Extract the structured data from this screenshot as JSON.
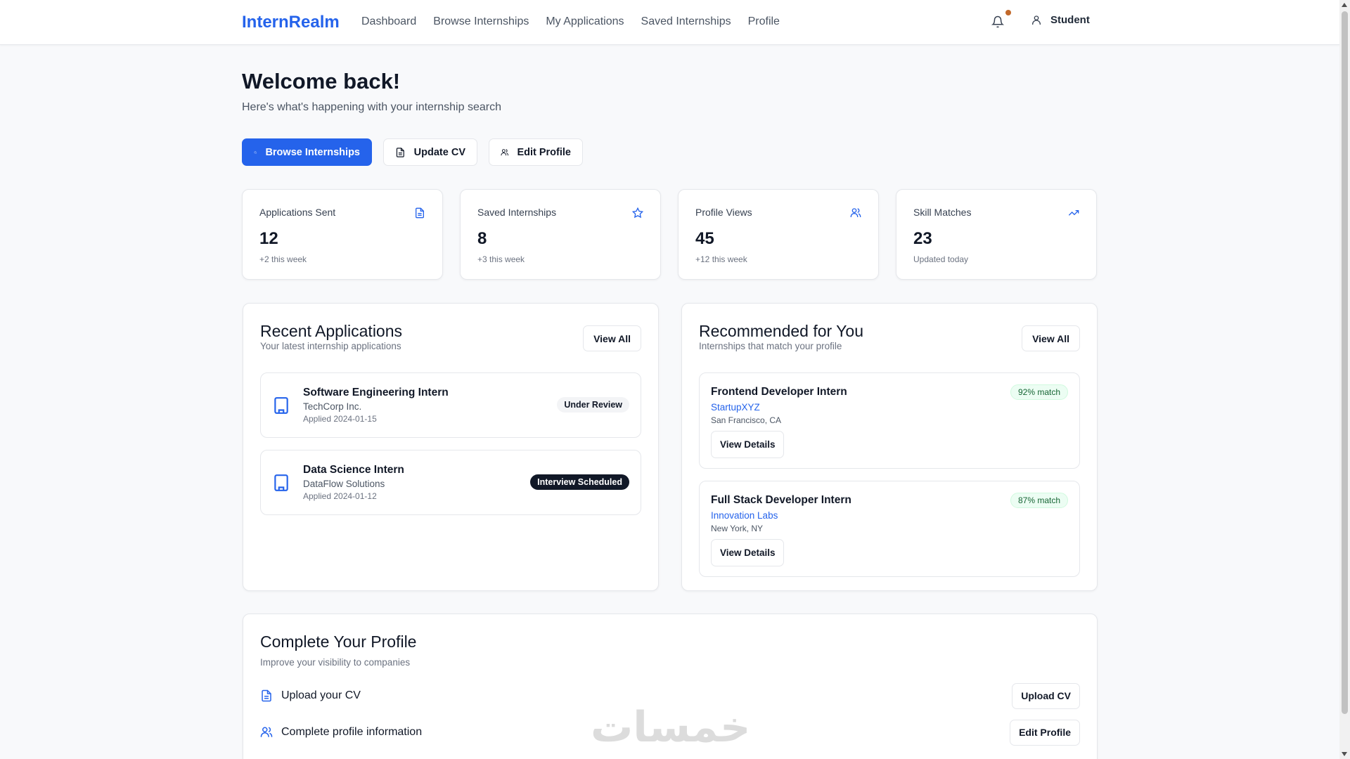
{
  "nav": {
    "logo": "InternRealm",
    "links": [
      "Dashboard",
      "Browse Internships",
      "My Applications",
      "Saved Internships",
      "Profile"
    ],
    "user": "Student",
    "notification_dot_color": "#c2692b"
  },
  "welcome": {
    "title": "Welcome back!",
    "subtitle": "Here's what's happening with your internship search"
  },
  "actions": {
    "browse": "Browse Internships",
    "update_cv": "Update CV",
    "edit_profile": "Edit Profile"
  },
  "stats": [
    {
      "label": "Applications Sent",
      "value": "12",
      "note": "+2 this week",
      "icon": "file-icon"
    },
    {
      "label": "Saved Internships",
      "value": "8",
      "note": "+3 this week",
      "icon": "star-icon"
    },
    {
      "label": "Profile Views",
      "value": "45",
      "note": "+12 this week",
      "icon": "users-icon"
    },
    {
      "label": "Skill Matches",
      "value": "23",
      "note": "Updated today",
      "icon": "trending-up-icon"
    }
  ],
  "recent": {
    "title": "Recent Applications",
    "subtitle": "Your latest internship applications",
    "view_all": "View All",
    "items": [
      {
        "title": "Software Engineering Intern",
        "company": "TechCorp Inc.",
        "applied": "Applied 2024-01-15",
        "status": "Under Review"
      },
      {
        "title": "Data Science Intern",
        "company": "DataFlow Solutions",
        "applied": "Applied 2024-01-12",
        "status": "Interview Scheduled"
      }
    ]
  },
  "recommended": {
    "title": "Recommended for You",
    "subtitle": "Internships that match your profile",
    "view_all": "View All",
    "items": [
      {
        "title": "Frontend Developer Intern",
        "company": "StartupXYZ",
        "location": "San Francisco, CA",
        "match": "92% match",
        "button": "View Details"
      },
      {
        "title": "Full Stack Developer Intern",
        "company": "Innovation Labs",
        "location": "New York, NY",
        "match": "87% match",
        "button": "View Details"
      }
    ]
  },
  "complete": {
    "title": "Complete Your Profile",
    "subtitle": "Improve your visibility to companies",
    "rows": [
      {
        "label": "Upload your CV",
        "button": "Upload CV"
      },
      {
        "label": "Complete profile information",
        "button": "Edit Profile"
      }
    ]
  },
  "watermark": "خمسات",
  "colors": {
    "accent": "#2563eb",
    "badge_dark": "#111827",
    "match_bg": "#ecfdf3"
  }
}
